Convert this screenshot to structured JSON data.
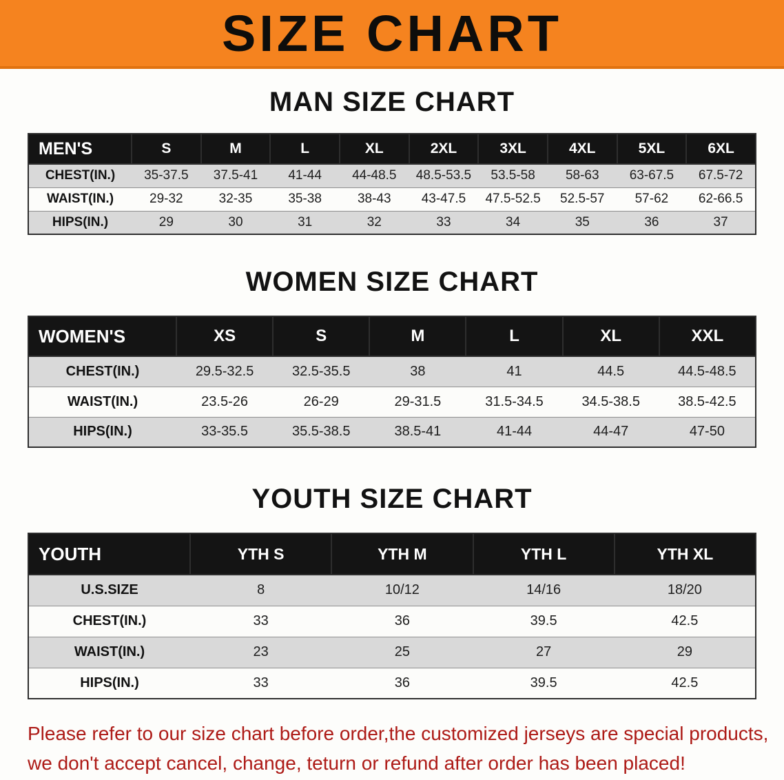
{
  "banner": {
    "title": "SIZE CHART"
  },
  "colors": {
    "banner_bg": "#f5831f",
    "table_header_bg": "#141414",
    "row_alt_bg": "#d9d9d9",
    "disclaimer_text": "#ad1a16"
  },
  "sections": {
    "men": {
      "heading": "MAN SIZE CHART",
      "table": {
        "header": [
          "MEN'S",
          "S",
          "M",
          "L",
          "XL",
          "2XL",
          "3XL",
          "4XL",
          "5XL",
          "6XL"
        ],
        "rows": [
          [
            "CHEST(IN.)",
            "35-37.5",
            "37.5-41",
            "41-44",
            "44-48.5",
            "48.5-53.5",
            "53.5-58",
            "58-63",
            "63-67.5",
            "67.5-72"
          ],
          [
            "WAIST(IN.)",
            "29-32",
            "32-35",
            "35-38",
            "38-43",
            "43-47.5",
            "47.5-52.5",
            "52.5-57",
            "57-62",
            "62-66.5"
          ],
          [
            "HIPS(IN.)",
            "29",
            "30",
            "31",
            "32",
            "33",
            "34",
            "35",
            "36",
            "37"
          ]
        ]
      }
    },
    "women": {
      "heading": "WOMEN SIZE CHART",
      "table": {
        "header": [
          "WOMEN'S",
          "XS",
          "S",
          "M",
          "L",
          "XL",
          "XXL"
        ],
        "rows": [
          [
            "CHEST(IN.)",
            "29.5-32.5",
            "32.5-35.5",
            "38",
            "41",
            "44.5",
            "44.5-48.5"
          ],
          [
            "WAIST(IN.)",
            "23.5-26",
            "26-29",
            "29-31.5",
            "31.5-34.5",
            "34.5-38.5",
            "38.5-42.5"
          ],
          [
            "HIPS(IN.)",
            "33-35.5",
            "35.5-38.5",
            "38.5-41",
            "41-44",
            "44-47",
            "47-50"
          ]
        ]
      }
    },
    "youth": {
      "heading": "YOUTH SIZE CHART",
      "table": {
        "header": [
          "YOUTH",
          "YTH S",
          "YTH M",
          "YTH L",
          "YTH XL"
        ],
        "rows": [
          [
            "U.S.SIZE",
            "8",
            "10/12",
            "14/16",
            "18/20"
          ],
          [
            "CHEST(IN.)",
            "33",
            "36",
            "39.5",
            "42.5"
          ],
          [
            "WAIST(IN.)",
            "23",
            "25",
            "27",
            "29"
          ],
          [
            "HIPS(IN.)",
            "33",
            "36",
            "39.5",
            "42.5"
          ]
        ]
      }
    }
  },
  "disclaimer": {
    "line1": "Please refer to our size chart before order,the customized jerseys are special products,",
    "line2": "we don't accept cancel, change, teturn or refund after order has been placed!"
  }
}
